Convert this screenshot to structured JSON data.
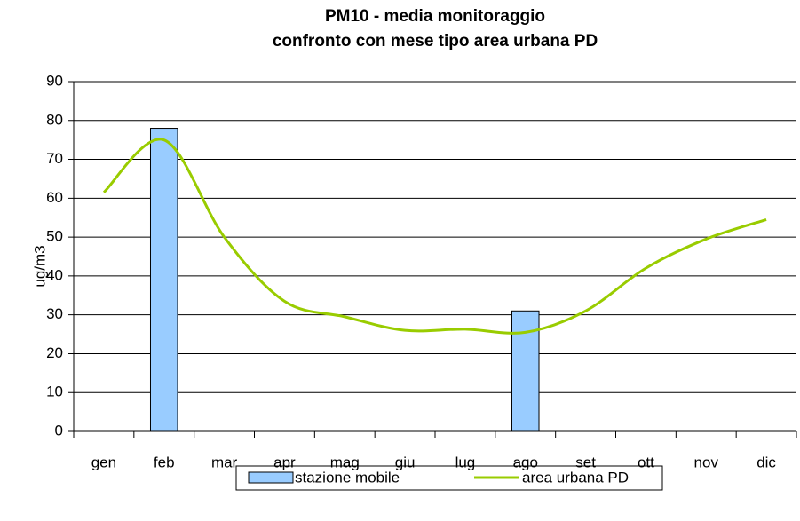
{
  "chart_data": {
    "type": "bar-line",
    "title": [
      "PM10 -  media monitoraggio",
      "confronto con mese tipo area urbana PD"
    ],
    "ylabel": "ug/m3",
    "categories": [
      "gen",
      "feb",
      "mar",
      "apr",
      "mag",
      "giu",
      "lug",
      "ago",
      "set",
      "ott",
      "nov",
      "dic"
    ],
    "series": [
      {
        "name": "stazione mobile",
        "type": "bar",
        "color": "#99ccff",
        "values": [
          null,
          78,
          null,
          null,
          null,
          null,
          null,
          31,
          null,
          null,
          null,
          null
        ]
      },
      {
        "name": "area urbana PD",
        "type": "line",
        "color": "#99cc00",
        "values": [
          61.5,
          75,
          50,
          33.5,
          29.5,
          26,
          26.3,
          25.5,
          31,
          42,
          49.5,
          54.5
        ]
      }
    ],
    "ylim": [
      0,
      90
    ],
    "yticks": [
      0,
      10,
      20,
      30,
      40,
      50,
      60,
      70,
      80,
      90
    ],
    "grid": true,
    "legend": "bottom"
  }
}
